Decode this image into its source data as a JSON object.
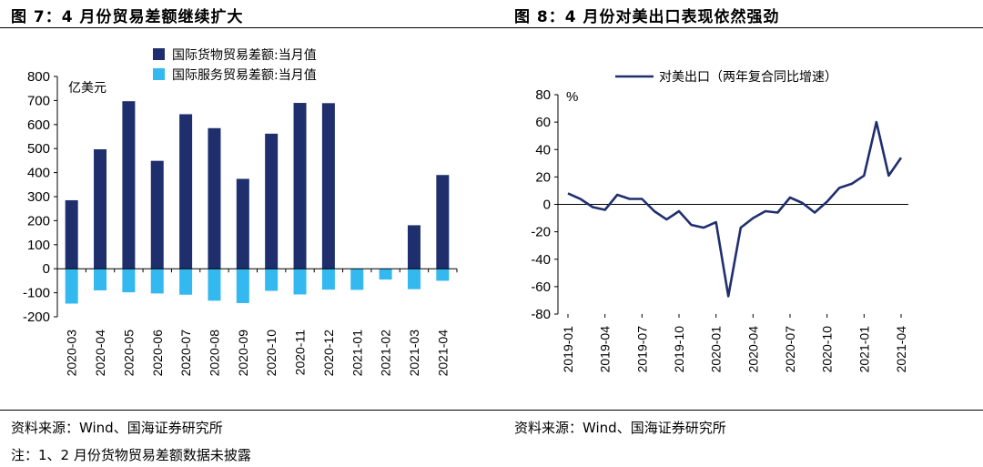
{
  "left": {
    "title": "图 7：4 月份贸易差额继续扩大",
    "source": "资料来源：Wind、国海证券研究所",
    "note": "注：1、2 月份货物贸易差额数据未披露"
  },
  "right": {
    "title": "图 8：4 月份对美出口表现依然强劲",
    "source": "资料来源：Wind、国海证券研究所"
  },
  "chart_data": [
    {
      "type": "bar",
      "unit_label": "亿美元",
      "categories": [
        "2020-03",
        "2020-04",
        "2020-05",
        "2020-06",
        "2020-07",
        "2020-08",
        "2020-09",
        "2020-10",
        "2020-11",
        "2020-12",
        "2021-01",
        "2021-02",
        "2021-03",
        "2021-04"
      ],
      "series": [
        {
          "name": "国际货物贸易差额:当月值",
          "color": "#1f2f6e",
          "values": [
            285,
            497,
            697,
            449,
            643,
            585,
            374,
            562,
            690,
            689,
            null,
            null,
            181,
            390
          ]
        },
        {
          "name": "国际服务贸易差额:当月值",
          "color": "#33b8ef",
          "values": [
            -145,
            -90,
            -98,
            -103,
            -108,
            -133,
            -143,
            -92,
            -107,
            -87,
            -88,
            -45,
            -85,
            -50
          ]
        }
      ],
      "ylim": [
        -200,
        800
      ],
      "yticks": [
        -200,
        -100,
        0,
        100,
        200,
        300,
        400,
        500,
        600,
        700,
        800
      ],
      "legend": "top"
    },
    {
      "type": "line",
      "unit_label": "%",
      "series": [
        {
          "name": "对美出口（两年复合同比增速）",
          "color": "#1f2f6e",
          "values": [
            8,
            4,
            -2,
            -4,
            7,
            4,
            4,
            -5,
            -11,
            -5,
            -15,
            -17,
            -13,
            -67,
            -17,
            -10,
            -5,
            -6,
            5,
            1,
            -6,
            2,
            12,
            15,
            21,
            60,
            21,
            34
          ]
        }
      ],
      "x_start": "2019-01",
      "xticks": [
        "2019-01",
        "2019-04",
        "2019-07",
        "2019-10",
        "2020-01",
        "2020-04",
        "2020-07",
        "2020-10",
        "2021-01",
        "2021-04"
      ],
      "ylim": [
        -80,
        80
      ],
      "yticks": [
        -80,
        -60,
        -40,
        -20,
        0,
        20,
        40,
        60,
        80
      ],
      "legend": "top"
    }
  ]
}
